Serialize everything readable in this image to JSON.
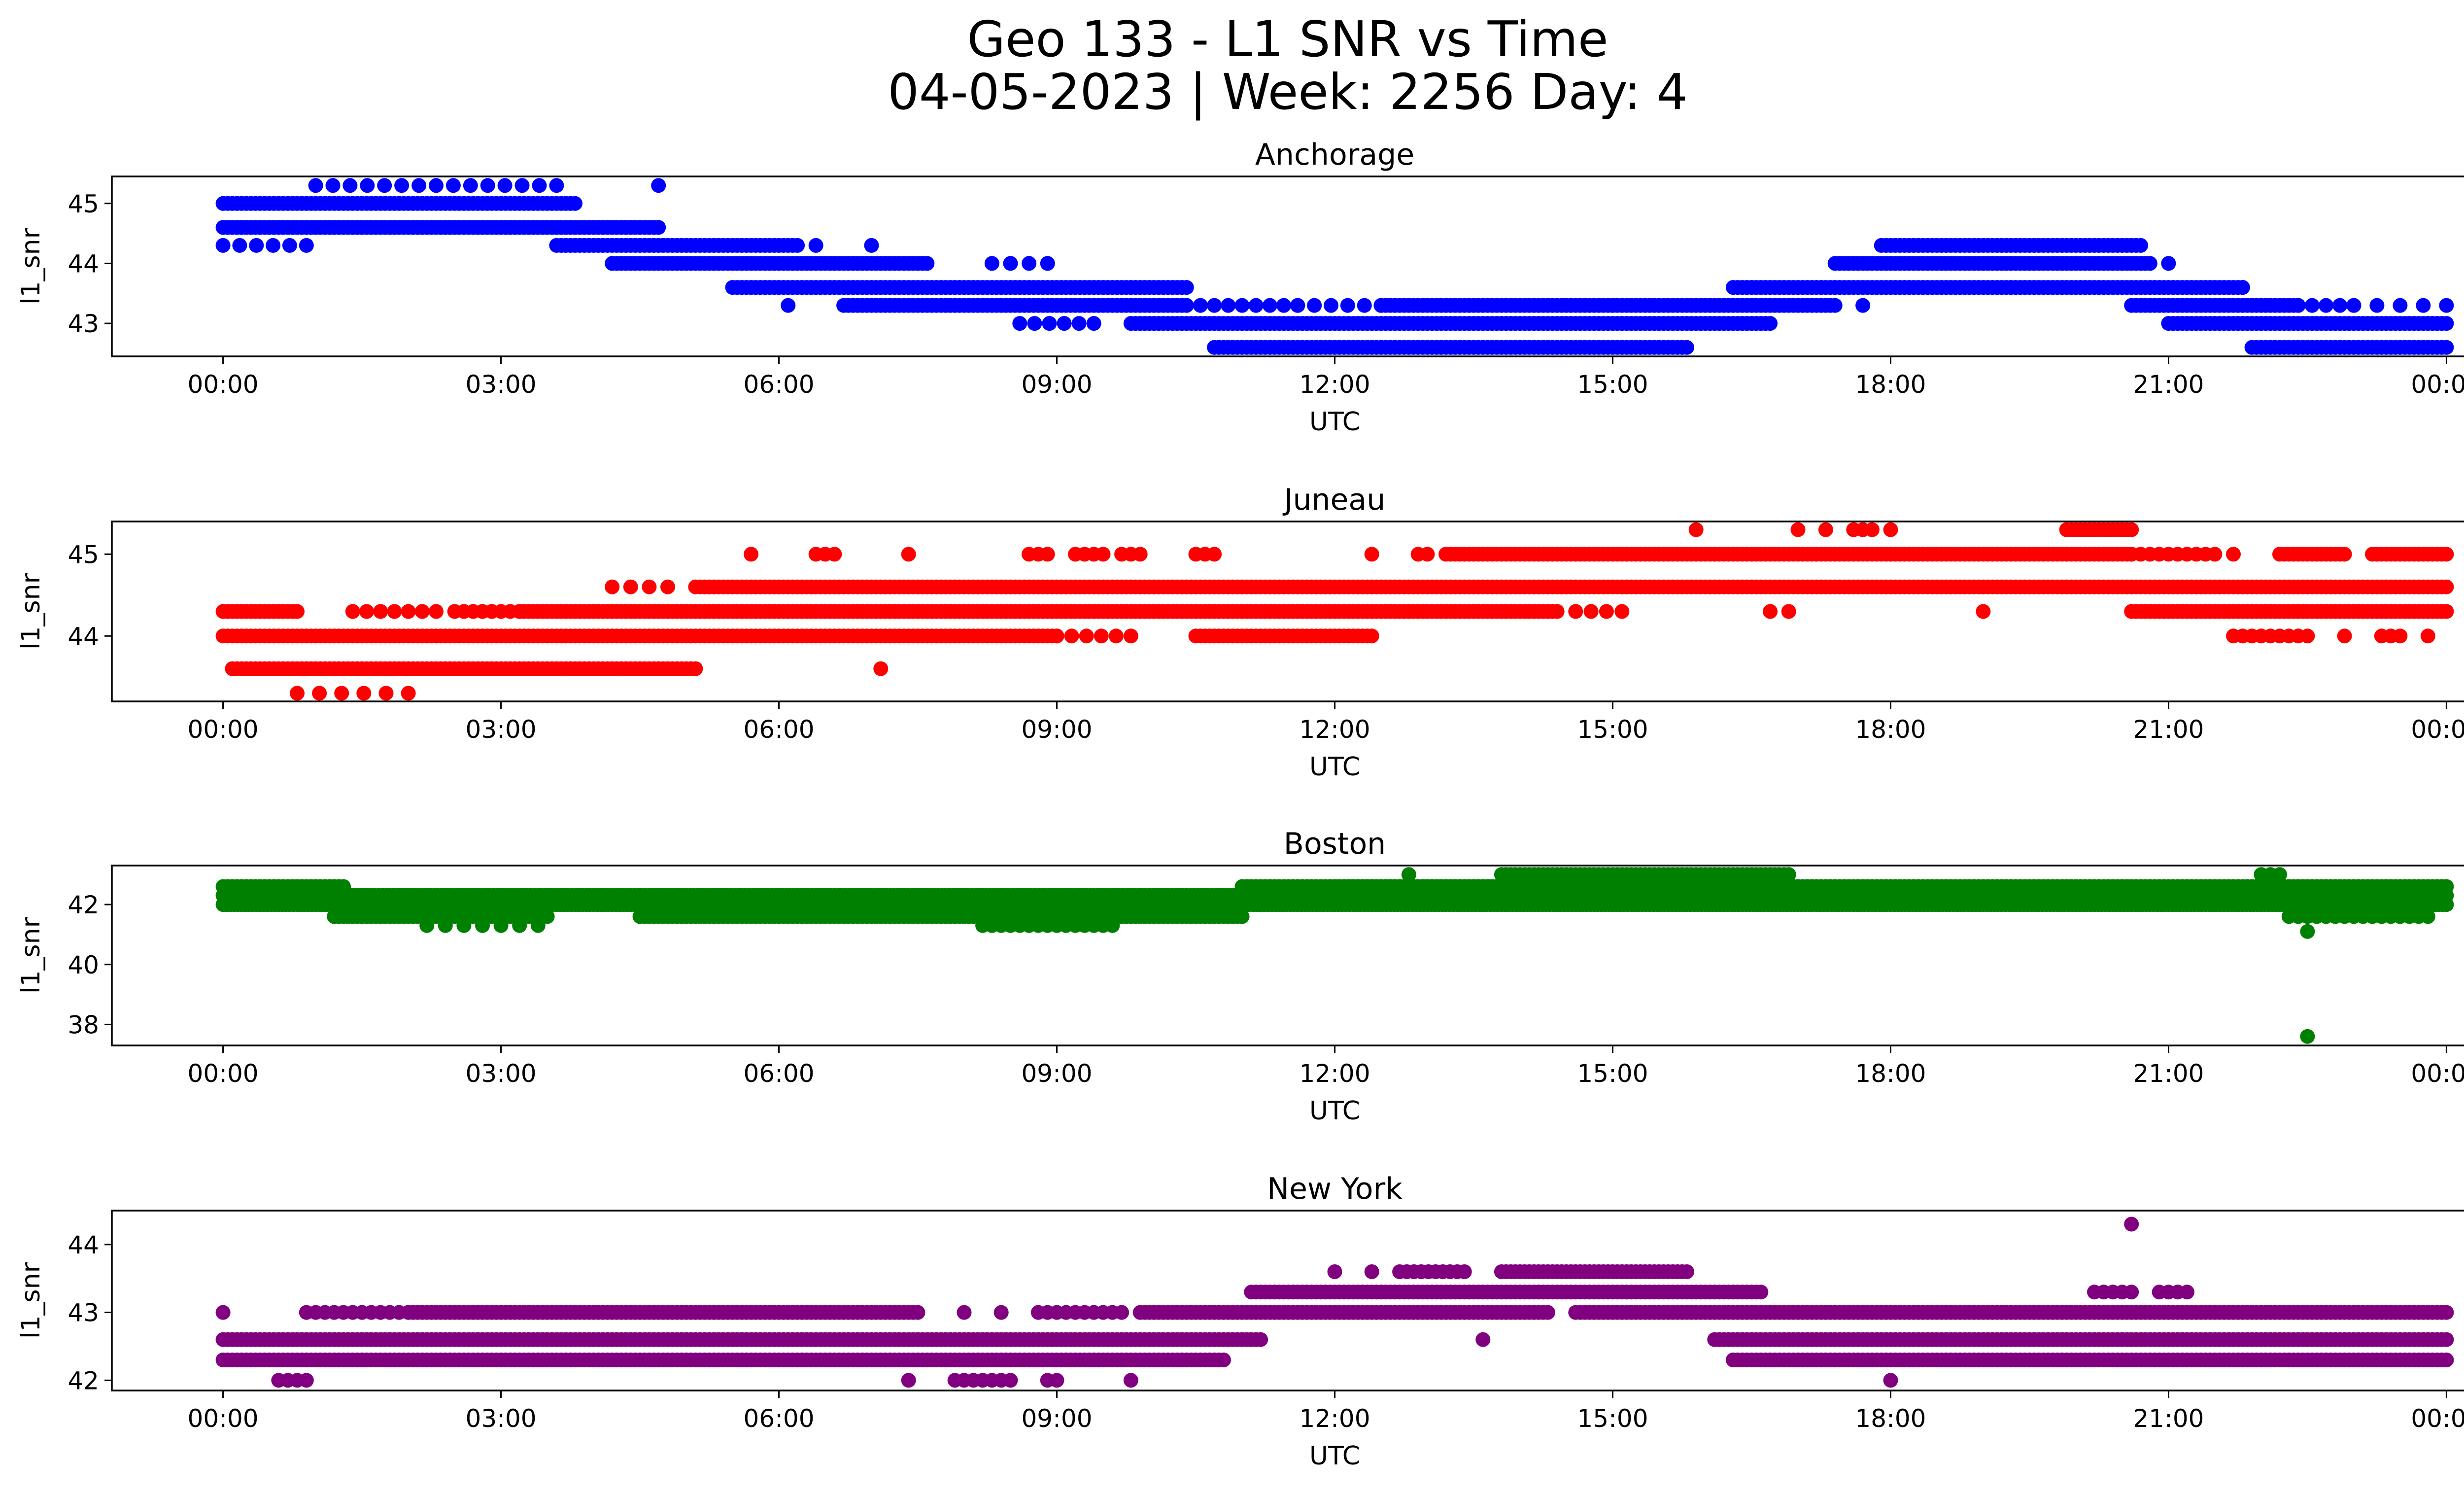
{
  "figure": {
    "title_line1": "Geo 133 - L1 SNR vs Time",
    "title_line2": "04-05-2023 | Week: 2256 Day: 4"
  },
  "chart_data": [
    {
      "type": "scatter",
      "title": "Anchorage",
      "xlabel": "UTC",
      "ylabel": "l1_snr",
      "color": "#0000ff",
      "xlim_hours": [
        -1.2,
        25.2
      ],
      "ylim": [
        42.45,
        45.45
      ],
      "xticks": [
        "00:00",
        "03:00",
        "06:00",
        "09:00",
        "12:00",
        "15:00",
        "18:00",
        "21:00",
        "00:00"
      ],
      "yticks": [
        43,
        44,
        45
      ],
      "series": [
        {
          "value": 45.3,
          "segments": [
            [
              1.0,
              3.6,
              0.18
            ],
            [
              4.7,
              4.7,
              0.2
            ]
          ]
        },
        {
          "value": 45.0,
          "segments": [
            [
              0.0,
              3.8,
              0.05
            ]
          ]
        },
        {
          "value": 44.6,
          "segments": [
            [
              0.0,
              4.7,
              0.05
            ]
          ]
        },
        {
          "value": 44.3,
          "segments": [
            [
              0.0,
              0.9,
              0.2
            ],
            [
              3.6,
              6.2,
              0.05
            ],
            [
              6.4,
              6.4,
              0.2
            ],
            [
              7.0,
              7.0,
              0.2
            ]
          ]
        },
        {
          "value": 44.0,
          "segments": [
            [
              4.2,
              7.6,
              0.05
            ],
            [
              8.3,
              8.9,
              0.2
            ]
          ]
        },
        {
          "value": 43.6,
          "segments": [
            [
              5.5,
              10.4,
              0.05
            ]
          ]
        },
        {
          "value": 43.3,
          "segments": [
            [
              6.1,
              6.1,
              0.2
            ],
            [
              6.7,
              10.4,
              0.05
            ],
            [
              10.4,
              11.6,
              0.15
            ],
            [
              11.6,
              12.5,
              0.2
            ],
            [
              12.5,
              15.0,
              0.05
            ],
            [
              15.0,
              17.4,
              0.05
            ],
            [
              17.7,
              17.7,
              0.2
            ]
          ]
        },
        {
          "value": 43.0,
          "segments": [
            [
              8.6,
              9.4,
              0.15
            ],
            [
              9.8,
              16.7,
              0.05
            ]
          ]
        },
        {
          "value": 42.6,
          "segments": [
            [
              10.7,
              15.8,
              0.05
            ]
          ]
        },
        {
          "value": 43.6,
          "segments": [
            [
              16.3,
              21.8,
              0.05
            ],
            [
              21.8,
              21.8,
              0.2
            ]
          ]
        },
        {
          "value": 44.0,
          "segments": [
            [
              17.4,
              20.8,
              0.05
            ],
            [
              21.0,
              21.0,
              0.2
            ]
          ]
        },
        {
          "value": 44.3,
          "segments": [
            [
              17.9,
              20.7,
              0.05
            ]
          ]
        },
        {
          "value": 43.3,
          "segments": [
            [
              20.6,
              22.4,
              0.05
            ],
            [
              22.4,
              23.0,
              0.15
            ],
            [
              23.0,
              24.0,
              0.25
            ]
          ]
        },
        {
          "value": 43.0,
          "segments": [
            [
              21.0,
              24.0,
              0.05
            ]
          ]
        },
        {
          "value": 42.6,
          "segments": [
            [
              21.9,
              24.0,
              0.05
            ]
          ]
        }
      ]
    },
    {
      "type": "scatter",
      "title": "Juneau",
      "xlabel": "UTC",
      "ylabel": "l1_snr",
      "color": "#ff0000",
      "xlim_hours": [
        -1.2,
        25.2
      ],
      "ylim": [
        43.2,
        45.4
      ],
      "xticks": [
        "00:00",
        "03:00",
        "06:00",
        "09:00",
        "12:00",
        "15:00",
        "18:00",
        "21:00",
        "00:00"
      ],
      "yticks": [
        44,
        45
      ],
      "series": [
        {
          "value": 43.3,
          "segments": [
            [
              0.8,
              2.0,
              0.25
            ]
          ]
        },
        {
          "value": 43.6,
          "segments": [
            [
              0.1,
              5.1,
              0.05
            ],
            [
              7.1,
              7.1,
              0.2
            ]
          ]
        },
        {
          "value": 44.0,
          "segments": [
            [
              0.0,
              9.0,
              0.05
            ],
            [
              9.0,
              9.8,
              0.15
            ],
            [
              10.5,
              12.4,
              0.05
            ]
          ]
        },
        {
          "value": 44.3,
          "segments": [
            [
              0.0,
              0.8,
              0.05
            ],
            [
              1.4,
              2.3,
              0.15
            ],
            [
              2.5,
              3.2,
              0.1
            ],
            [
              3.2,
              14.4,
              0.05
            ],
            [
              14.6,
              15.1,
              0.2
            ],
            [
              16.7,
              16.9,
              0.15
            ],
            [
              19.0,
              19.0,
              0.2
            ],
            [
              20.6,
              24.0,
              0.05
            ]
          ]
        },
        {
          "value": 44.6,
          "segments": [
            [
              4.2,
              4.8,
              0.2
            ],
            [
              5.1,
              24.0,
              0.05
            ]
          ]
        },
        {
          "value": 45.0,
          "segments": [
            [
              5.7,
              5.7,
              0.2
            ],
            [
              6.4,
              6.6,
              0.1
            ],
            [
              7.4,
              7.4,
              0.2
            ],
            [
              8.7,
              8.9,
              0.1
            ],
            [
              9.2,
              9.5,
              0.1
            ],
            [
              9.7,
              9.9,
              0.1
            ],
            [
              10.5,
              10.7,
              0.1
            ],
            [
              12.4,
              12.4,
              0.2
            ],
            [
              12.9,
              13.0,
              0.1
            ],
            [
              13.2,
              20.6,
              0.05
            ],
            [
              20.6,
              21.5,
              0.1
            ],
            [
              21.7,
              21.7,
              0.2
            ],
            [
              22.2,
              22.9,
              0.05
            ],
            [
              23.2,
              24.0,
              0.05
            ]
          ]
        },
        {
          "value": 45.3,
          "segments": [
            [
              15.9,
              15.9,
              0.2
            ],
            [
              17.0,
              17.3,
              0.3
            ],
            [
              17.6,
              17.8,
              0.1
            ],
            [
              18.0,
              18.0,
              0.2
            ],
            [
              19.9,
              20.6,
              0.05
            ]
          ]
        },
        {
          "value": 44.0,
          "segments": [
            [
              21.7,
              22.5,
              0.1
            ],
            [
              22.9,
              22.9,
              0.2
            ],
            [
              23.3,
              23.5,
              0.1
            ],
            [
              23.8,
              23.8,
              0.2
            ]
          ]
        }
      ]
    },
    {
      "type": "scatter",
      "title": "Boston",
      "xlabel": "UTC",
      "ylabel": "l1_snr",
      "color": "#008000",
      "xlim_hours": [
        -1.2,
        25.2
      ],
      "ylim": [
        37.3,
        43.3
      ],
      "xticks": [
        "00:00",
        "03:00",
        "06:00",
        "09:00",
        "12:00",
        "15:00",
        "18:00",
        "21:00",
        "00:00"
      ],
      "yticks": [
        38,
        40,
        42
      ],
      "series": [
        {
          "value": 42.6,
          "segments": [
            [
              0.0,
              1.3,
              0.05
            ],
            [
              11.0,
              24.0,
              0.05
            ]
          ]
        },
        {
          "value": 42.3,
          "segments": [
            [
              0.0,
              24.0,
              0.04
            ]
          ]
        },
        {
          "value": 42.0,
          "segments": [
            [
              0.0,
              24.0,
              0.04
            ]
          ]
        },
        {
          "value": 41.6,
          "segments": [
            [
              1.2,
              3.5,
              0.05
            ],
            [
              4.5,
              11.0,
              0.05
            ]
          ]
        },
        {
          "value": 41.3,
          "segments": [
            [
              2.2,
              3.4,
              0.2
            ],
            [
              8.2,
              9.6,
              0.1
            ]
          ]
        },
        {
          "value": 43.0,
          "segments": [
            [
              12.8,
              12.8,
              0.2
            ],
            [
              13.8,
              16.9,
              0.05
            ],
            [
              22.0,
              22.2,
              0.1
            ]
          ]
        },
        {
          "value": 42.6,
          "segments": [
            [
              12.0,
              16.9,
              0.05
            ]
          ]
        },
        {
          "value": 41.6,
          "segments": [
            [
              22.3,
              23.8,
              0.1
            ]
          ]
        },
        {
          "value": 41.1,
          "segments": [
            [
              22.5,
              22.5,
              0.2
            ]
          ]
        },
        {
          "value": 37.6,
          "segments": [
            [
              22.5,
              22.5,
              0.2
            ]
          ]
        }
      ]
    },
    {
      "type": "scatter",
      "title": "New York",
      "xlabel": "UTC",
      "ylabel": "l1_snr",
      "color": "#800080",
      "xlim_hours": [
        -1.2,
        25.2
      ],
      "ylim": [
        41.85,
        44.5
      ],
      "xticks": [
        "00:00",
        "03:00",
        "06:00",
        "09:00",
        "12:00",
        "15:00",
        "18:00",
        "21:00",
        "00:00"
      ],
      "yticks": [
        42,
        43,
        44
      ],
      "series": [
        {
          "value": 42.0,
          "segments": [
            [
              0.6,
              0.9,
              0.1
            ],
            [
              7.4,
              7.4,
              0.2
            ],
            [
              7.9,
              8.5,
              0.1
            ],
            [
              8.9,
              9.0,
              0.1
            ],
            [
              9.8,
              9.8,
              0.2
            ],
            [
              18.0,
              18.0,
              0.2
            ]
          ]
        },
        {
          "value": 42.3,
          "segments": [
            [
              0.0,
              10.8,
              0.05
            ],
            [
              16.3,
              24.0,
              0.05
            ]
          ]
        },
        {
          "value": 42.6,
          "segments": [
            [
              0.0,
              11.2,
              0.05
            ],
            [
              13.6,
              13.6,
              0.2
            ],
            [
              16.1,
              24.0,
              0.05
            ]
          ]
        },
        {
          "value": 43.0,
          "segments": [
            [
              0.0,
              0.0,
              0.2
            ],
            [
              0.9,
              2.0,
              0.1
            ],
            [
              2.0,
              7.5,
              0.05
            ],
            [
              8.0,
              8.0,
              0.2
            ],
            [
              8.4,
              8.4,
              0.2
            ],
            [
              8.8,
              9.7,
              0.1
            ],
            [
              9.9,
              14.3,
              0.05
            ],
            [
              14.6,
              17.3,
              0.05
            ],
            [
              17.3,
              24.0,
              0.05
            ]
          ]
        },
        {
          "value": 43.3,
          "segments": [
            [
              11.1,
              16.6,
              0.05
            ],
            [
              20.2,
              20.6,
              0.1
            ],
            [
              20.9,
              21.2,
              0.1
            ]
          ]
        },
        {
          "value": 43.6,
          "segments": [
            [
              12.0,
              12.0,
              0.2
            ],
            [
              12.4,
              12.4,
              0.2
            ],
            [
              12.7,
              13.4,
              0.08
            ],
            [
              13.8,
              15.8,
              0.05
            ]
          ]
        },
        {
          "value": 44.3,
          "segments": [
            [
              20.6,
              20.6,
              0.2
            ]
          ]
        }
      ]
    }
  ]
}
